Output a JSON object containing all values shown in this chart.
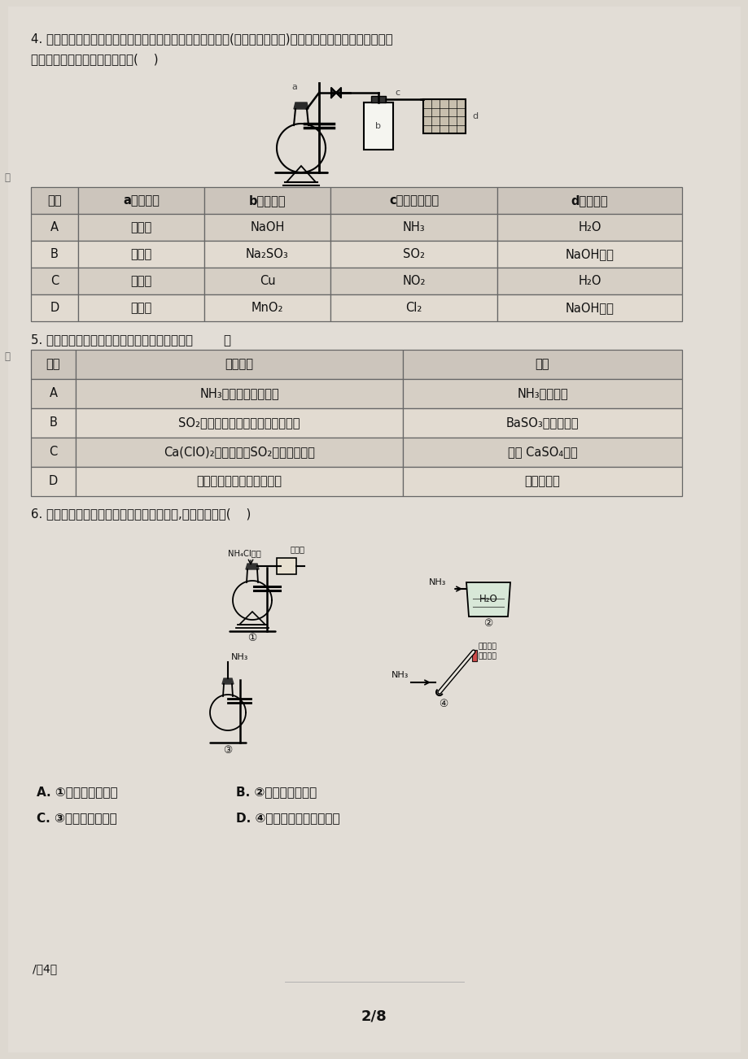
{
  "bg_color": "#e0dbd4",
  "q4_text1": "4. 实验室中某些气体的制取、收集及尾气处理装置如图所示(省略了净化装置)。仅用此装置和表中提供的物质",
  "q4_text2": "完成相关实验，最合理的选项是(    )",
  "table1_headers": [
    "选项",
    "a中的物质",
    "b中的物质",
    "c中收集的气体",
    "d中的物质"
  ],
  "table1_rows": [
    [
      "A",
      "氯化镂",
      "NaOH",
      "NH₃",
      "H₂O"
    ],
    [
      "B",
      "浓硫酸",
      "Na₂SO₃",
      "SO₂",
      "NaOH溶液"
    ],
    [
      "C",
      "稀硝酸",
      "Cu",
      "NO₂",
      "H₂O"
    ],
    [
      "D",
      "浓盐酸",
      "MnO₂",
      "Cl₂",
      "NaOH溶液"
    ]
  ],
  "q5_text": "5. 根据下列实验事实得出的相应结论正确的是（        ）",
  "table2_headers": [
    "选项",
    "实验事实",
    "结论"
  ],
  "table2_rows": [
    [
      "A",
      "NH₃的水溶液可以导电",
      "NH₃是电解质"
    ],
    [
      "B",
      "SO₂通入硝酸钒溶液中出现白色沉淠",
      "BaSO₃不溶于强酸"
    ],
    [
      "C",
      "Ca(ClO)₂溶液中通入SO₂产生白色沉淠",
      "生成 CaSO₄沉淠"
    ],
    [
      "D",
      "敬口放置的浓硝酸浓度变小",
      "硝酸不稳定"
    ]
  ],
  "q6_text": "6. 实验室制取少量干燥的氨气涉及下列装置,其中正确的是(    )",
  "q6_options": [
    "A. ①是氨气发生装置",
    "B. ②是氨气吸收装置",
    "C. ③是氨气发生装置",
    "D. ④是氨气收集、检验装置"
  ],
  "diag1_labels": [
    "NH₄Cl固体",
    "碱石灰",
    "①"
  ],
  "diag2_labels": [
    "NH₃",
    "H₂O",
    "②"
  ],
  "diag3_labels": [
    "NH₃",
    "③"
  ],
  "diag4_labels": [
    "NH₃",
    "湿润红色",
    "石蕊试纸",
    "④"
  ],
  "footer": "/关4页",
  "page_num": "2/8"
}
